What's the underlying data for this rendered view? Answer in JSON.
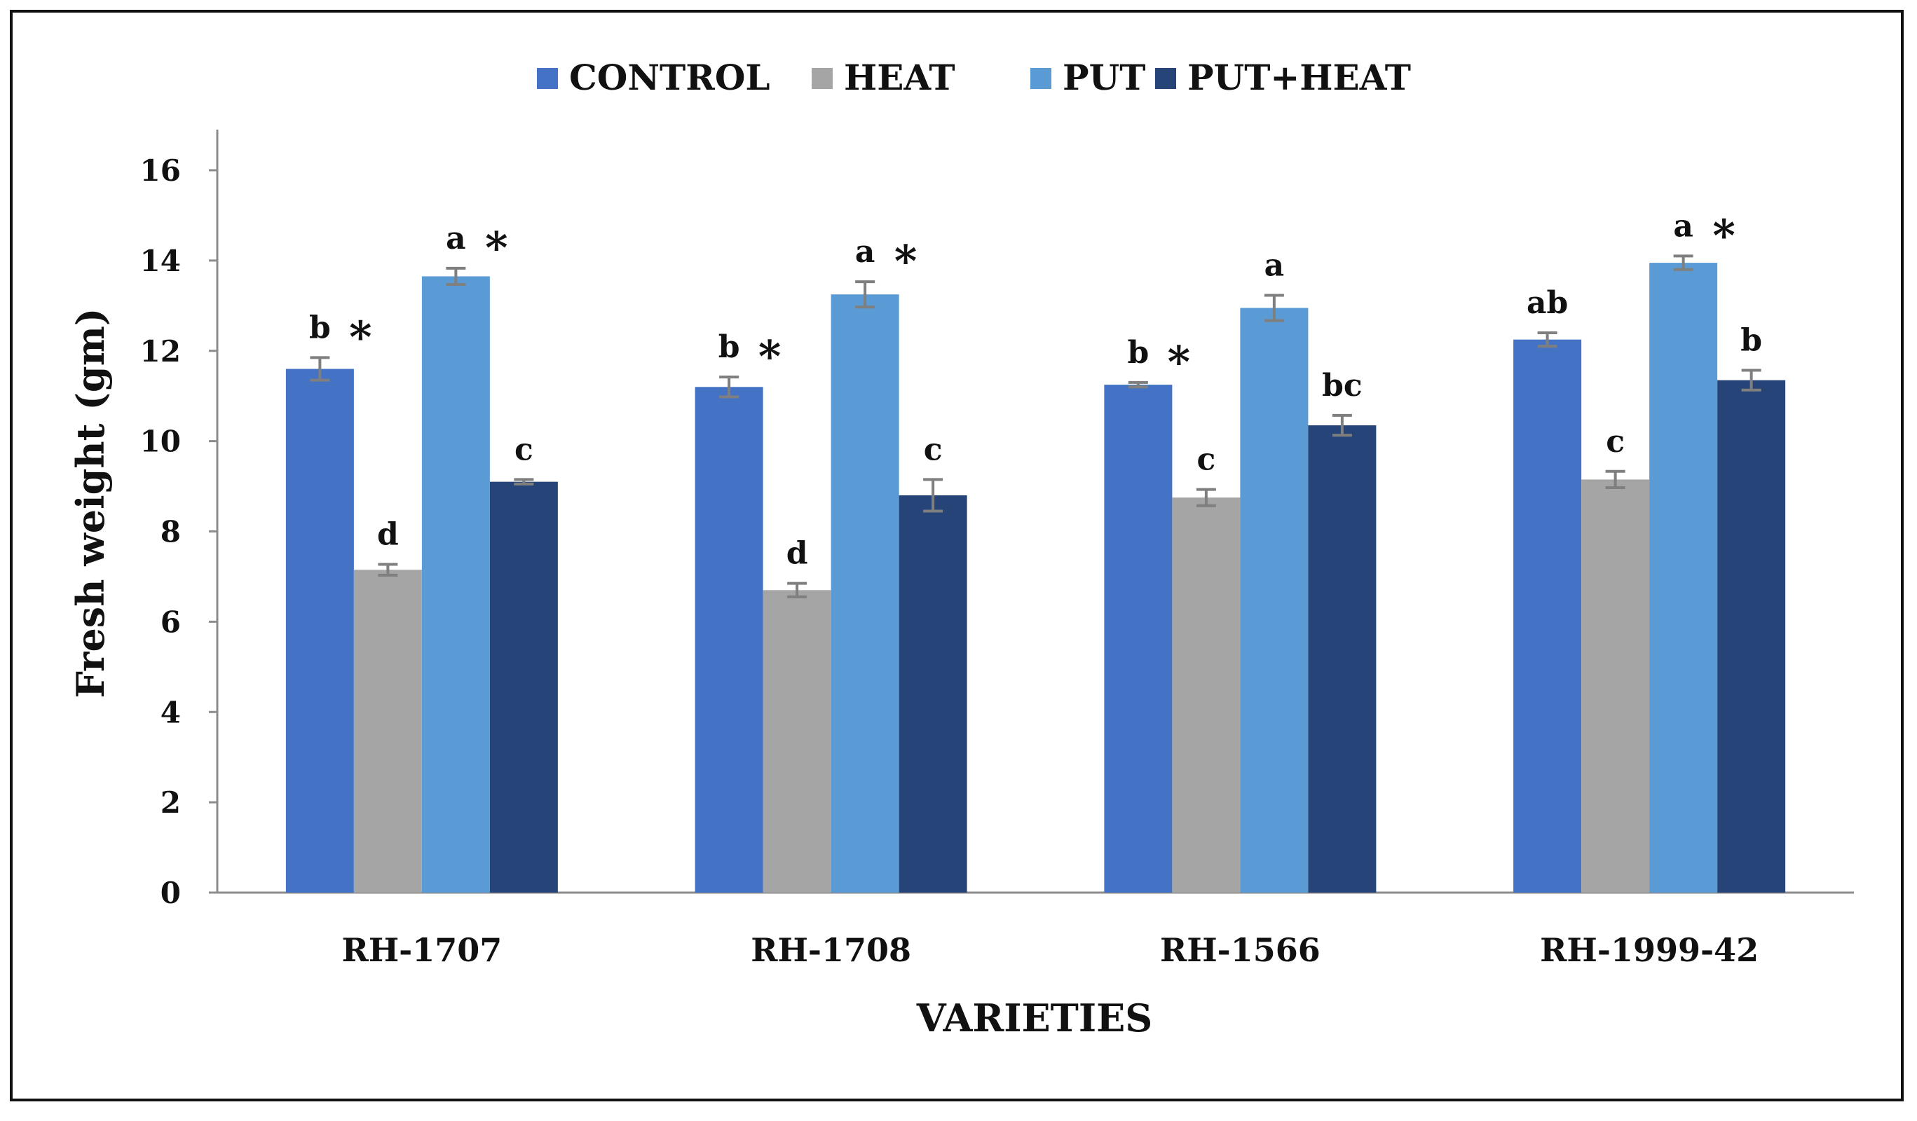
{
  "chart_data": {
    "type": "bar",
    "title": "",
    "xlabel": "VARIETIES",
    "ylabel": "Fresh weight (gm)",
    "ylim": [
      0,
      16
    ],
    "yticks": [
      0,
      2,
      4,
      6,
      8,
      10,
      12,
      14,
      16
    ],
    "grid": false,
    "legend_position": "top-center",
    "categories": [
      "RH-1707",
      "RH-1708",
      "RH-1566",
      "RH-1999-42"
    ],
    "series": [
      {
        "name": "CONTROL",
        "color": "#4472C4",
        "values": [
          11.6,
          11.2,
          11.25,
          12.25
        ],
        "errors": [
          0.25,
          0.22,
          0.05,
          0.15
        ],
        "letters": [
          "b",
          "b",
          "b",
          "ab"
        ],
        "stars": [
          "*",
          "*",
          "*",
          ""
        ]
      },
      {
        "name": "HEAT",
        "color": "#A5A5A5",
        "values": [
          7.15,
          6.7,
          8.75,
          9.15
        ],
        "errors": [
          0.12,
          0.15,
          0.18,
          0.18
        ],
        "letters": [
          "d",
          "d",
          "c",
          "c"
        ],
        "stars": [
          "",
          "",
          "",
          ""
        ]
      },
      {
        "name": "PUT",
        "color": "#5B9BD5",
        "values": [
          13.65,
          13.25,
          12.95,
          13.95
        ],
        "errors": [
          0.18,
          0.28,
          0.28,
          0.15
        ],
        "letters": [
          "a",
          "a",
          "a",
          "a"
        ],
        "stars": [
          "*",
          "*",
          "",
          "*"
        ]
      },
      {
        "name": "PUT+HEAT",
        "color": "#264478",
        "values": [
          9.1,
          8.8,
          10.35,
          11.35
        ],
        "errors": [
          0.05,
          0.35,
          0.22,
          0.22
        ],
        "letters": [
          "c",
          "c",
          "bc",
          "b"
        ],
        "stars": [
          "",
          "",
          "",
          ""
        ]
      }
    ],
    "error_bar_color": "#7F7F7F"
  }
}
